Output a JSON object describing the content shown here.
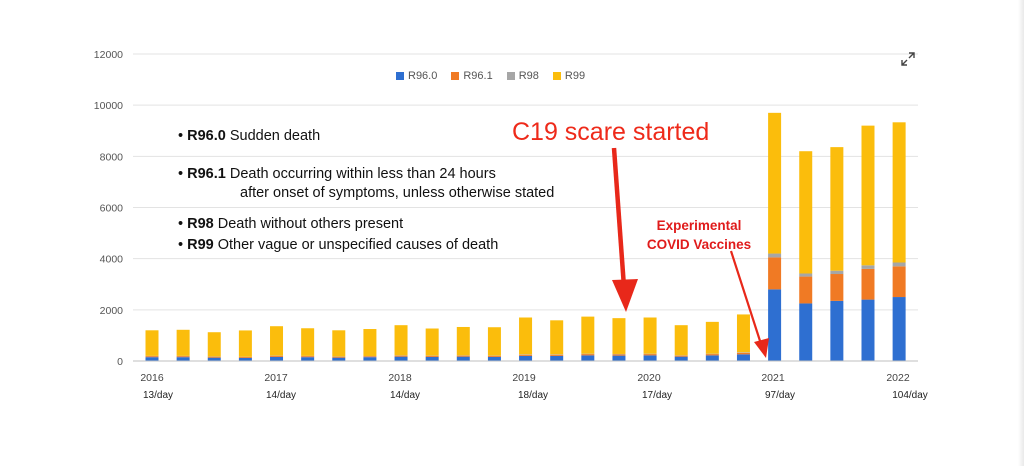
{
  "chart_data": {
    "type": "bar",
    "stacked": true,
    "title": "",
    "xlabel": "",
    "ylabel": "",
    "ylim": [
      0,
      12000
    ],
    "yticks": [
      0,
      2000,
      4000,
      6000,
      8000,
      10000,
      12000
    ],
    "grid": true,
    "legend_position": "top",
    "x_tick_labels": [
      "2016",
      "2017",
      "2018",
      "2019",
      "2020",
      "2021",
      "2022"
    ],
    "per_day_labels": [
      "13/day",
      "14/day",
      "14/day",
      "18/day",
      "17/day",
      "97/day",
      "104/day"
    ],
    "categories": [
      "1",
      "2",
      "3",
      "4",
      "5",
      "6",
      "7",
      "8",
      "9",
      "10",
      "11",
      "12",
      "13",
      "14",
      "15",
      "16",
      "17",
      "18",
      "19",
      "20",
      "21",
      "22",
      "23",
      "24",
      "25"
    ],
    "series": [
      {
        "name": "R96.0",
        "color": "#2e6fd1",
        "values": [
          150,
          150,
          130,
          120,
          160,
          150,
          130,
          150,
          170,
          160,
          170,
          160,
          200,
          200,
          220,
          210,
          220,
          170,
          220,
          260,
          2800,
          2250,
          2350,
          2400,
          2500
        ]
      },
      {
        "name": "R96.1",
        "color": "#f07a24",
        "values": [
          40,
          40,
          35,
          35,
          40,
          40,
          35,
          35,
          40,
          40,
          40,
          40,
          45,
          45,
          50,
          50,
          50,
          40,
          50,
          60,
          1250,
          1050,
          1050,
          1200,
          1200
        ]
      },
      {
        "name": "R98",
        "color": "#a6a6a6",
        "values": [
          10,
          10,
          10,
          10,
          10,
          10,
          10,
          10,
          10,
          10,
          10,
          10,
          15,
          15,
          15,
          15,
          15,
          10,
          15,
          20,
          150,
          120,
          130,
          140,
          150
        ]
      },
      {
        "name": "R99",
        "color": "#fbbd0c",
        "values": [
          1000,
          1020,
          950,
          1030,
          1150,
          1080,
          1025,
          1055,
          1180,
          1060,
          1110,
          1110,
          1440,
          1330,
          1450,
          1400,
          1415,
          1180,
          1245,
          1480,
          5500,
          4780,
          4830,
          5460,
          5480
        ]
      }
    ]
  },
  "definitions": [
    {
      "code": "R96.0",
      "text": " Sudden death"
    },
    {
      "code": "R96.1",
      "text": " Death occurring within less than 24 hours",
      "continuation": "after onset of symptoms, unless otherwise stated"
    },
    {
      "code": "R98",
      "text": " Death without others present"
    },
    {
      "code": "R99",
      "text": " Other vague or unspecified causes of death"
    }
  ],
  "annotations": {
    "c19": "C19 scare started",
    "vaccines_line1": "Experimental",
    "vaccines_line2": "COVID Vaccines",
    "color": "#e8281a"
  },
  "icons": {
    "expand": "expand-arrows-icon"
  }
}
